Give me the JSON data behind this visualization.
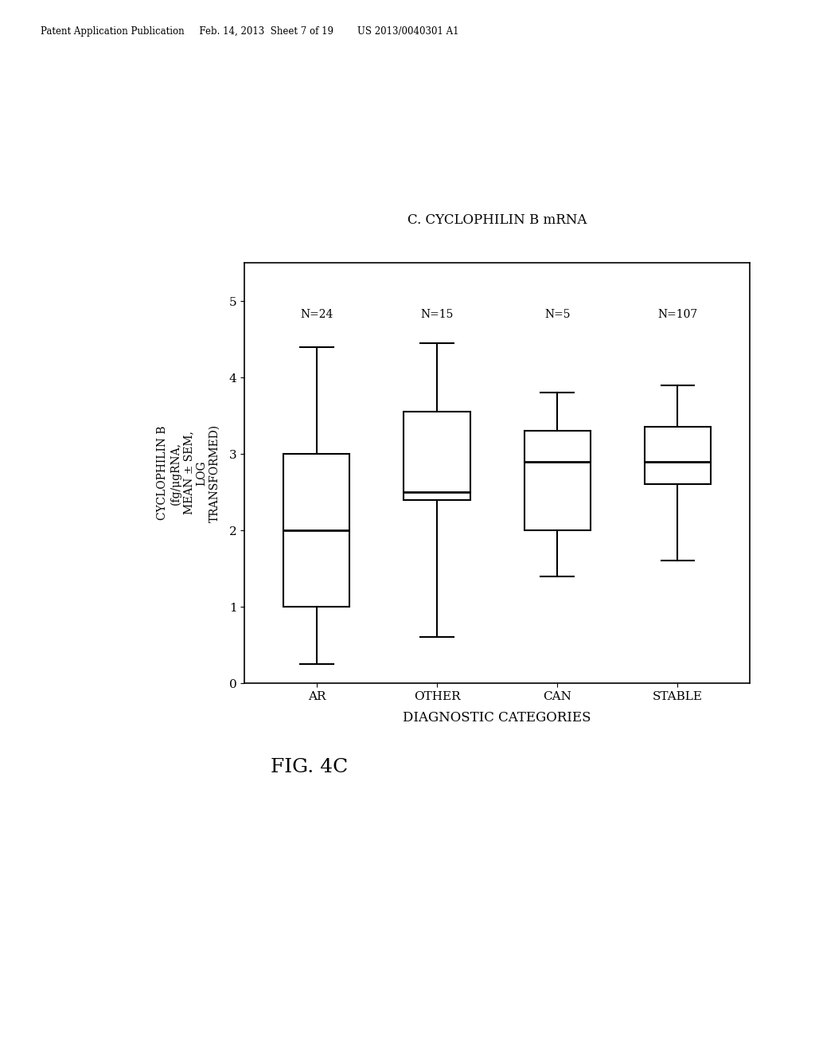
{
  "title": "C. CYCLOPHILIN B mRNA",
  "xlabel": "DIAGNOSTIC CATEGORIES",
  "ylabel": "CYCLOPHILIN B\n(fg/μgRNA,\nMEAN ± SEM,\nLOG\nTRANSFORMED)",
  "categories": [
    "AR",
    "OTHER",
    "CAN",
    "STABLE"
  ],
  "sample_sizes": [
    "N=24",
    "N=15",
    "N=5",
    "N=107"
  ],
  "ylim": [
    0,
    5.5
  ],
  "yticks": [
    0,
    1,
    2,
    3,
    4,
    5
  ],
  "boxes": [
    {
      "whislo": 0.25,
      "q1": 1.0,
      "med": 2.0,
      "q3": 3.0,
      "whishi": 4.4
    },
    {
      "whislo": 0.6,
      "q1": 2.4,
      "med": 2.5,
      "q3": 3.55,
      "whishi": 4.45
    },
    {
      "whislo": 1.4,
      "q1": 2.0,
      "med": 2.9,
      "q3": 3.3,
      "whishi": 3.8
    },
    {
      "whislo": 1.6,
      "q1": 2.6,
      "med": 2.9,
      "q3": 3.35,
      "whishi": 3.9
    }
  ],
  "header_text": "Patent Application Publication     Feb. 14, 2013  Sheet 7 of 19        US 2013/0040301 A1",
  "figure_label": "FIG. 4C",
  "bg_color": "#ffffff",
  "box_color": "#ffffff",
  "box_edge_color": "#000000",
  "median_color": "#000000",
  "whisker_color": "#000000",
  "cap_color": "#000000"
}
